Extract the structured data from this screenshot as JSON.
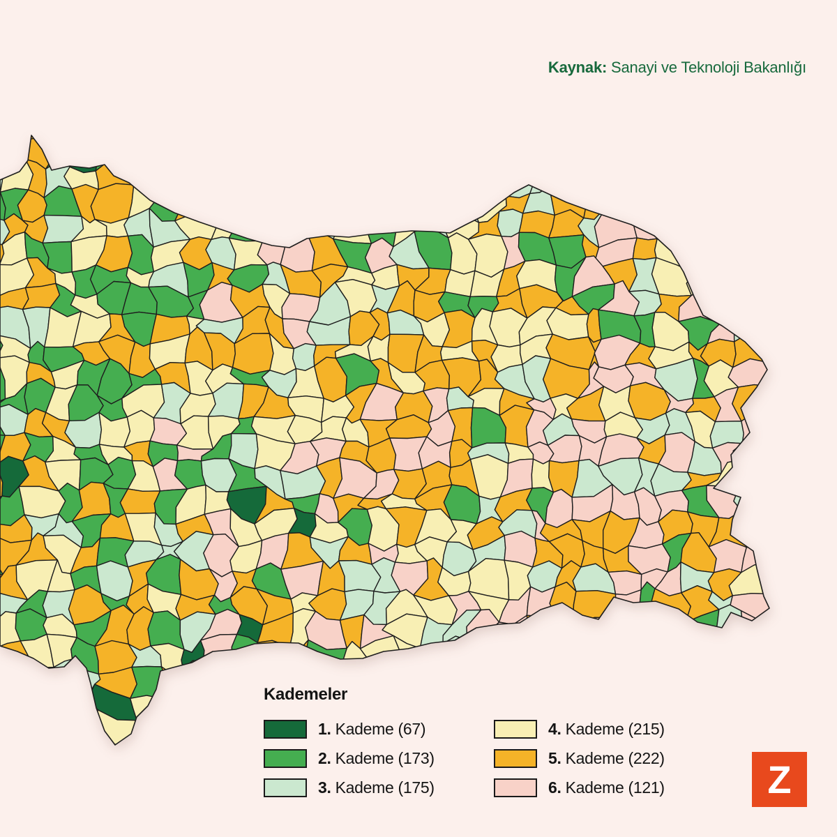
{
  "page": {
    "background": "#fcf0ec"
  },
  "header": {
    "source_label": "Kaynak:",
    "source_text": " Sanayi ve Teknoloji Bakanlığı",
    "text_color": "#17693c"
  },
  "legend": {
    "title": "Kademeler",
    "items": [
      {
        "rank": "1.",
        "label": "Kademe (67)",
        "color": "#156a3a"
      },
      {
        "rank": "2.",
        "label": "Kademe (173)",
        "color": "#45ae50"
      },
      {
        "rank": "3.",
        "label": "Kademe (175)",
        "color": "#cbe8cf"
      },
      {
        "rank": "4.",
        "label": "Kademe (215)",
        "color": "#f8efb4"
      },
      {
        "rank": "5.",
        "label": "Kademe (222)",
        "color": "#f5b328"
      },
      {
        "rank": "6.",
        "label": "Kademe (121)",
        "color": "#f8d2c8"
      }
    ]
  },
  "map": {
    "border_color": "#1e1e1e",
    "sea_color": "#fcf0ec"
  },
  "logo": {
    "letter": "Z",
    "background": "#e8491d",
    "color": "#ffffff"
  },
  "chart_data": {
    "type": "choropleth-map",
    "title": "Kademeler",
    "source": "Kaynak: Sanayi ve Teknoloji Bakanlığı",
    "categories": [
      "1. Kademe",
      "2. Kademe",
      "3. Kademe",
      "4. Kademe",
      "5. Kademe",
      "6. Kademe"
    ],
    "values": [
      67,
      173,
      175,
      215,
      222,
      121
    ],
    "colors": [
      "#156a3a",
      "#45ae50",
      "#cbe8cf",
      "#f8efb4",
      "#f5b328",
      "#f8d2c8"
    ],
    "legend_position": "bottom-center"
  }
}
